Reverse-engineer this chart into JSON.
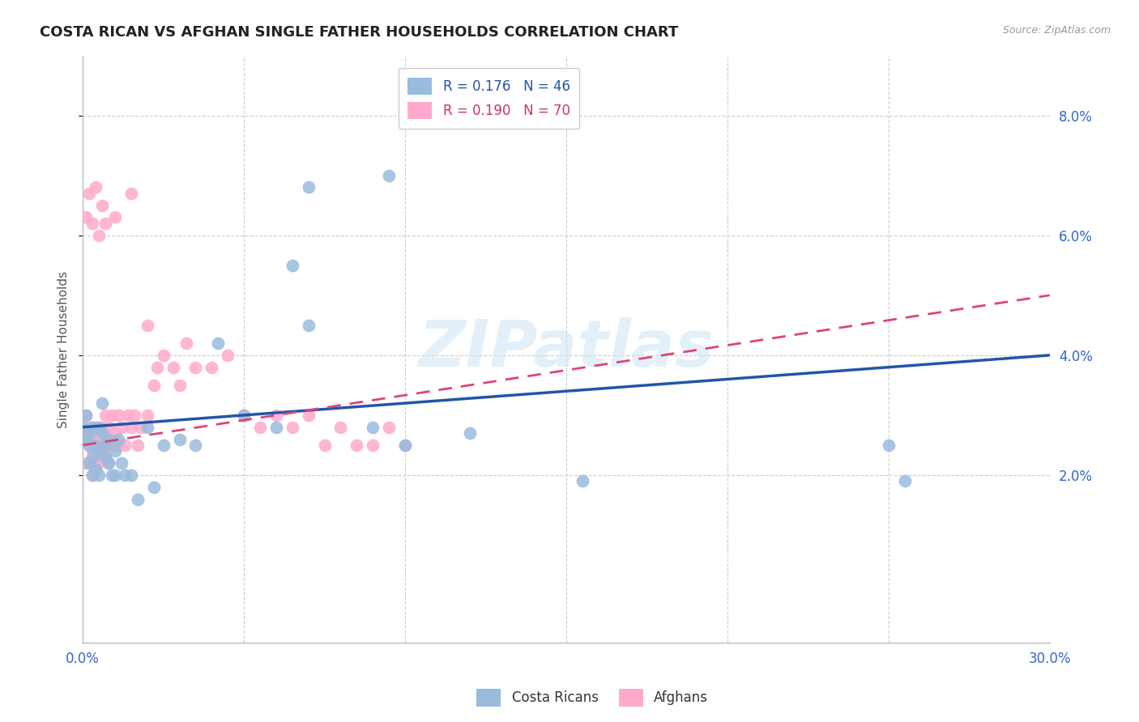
{
  "title": "COSTA RICAN VS AFGHAN SINGLE FATHER HOUSEHOLDS CORRELATION CHART",
  "source": "Source: ZipAtlas.com",
  "ylabel": "Single Father Households",
  "ytick_values": [
    0.02,
    0.04,
    0.06,
    0.08
  ],
  "xlim": [
    0.0,
    0.3
  ],
  "ylim": [
    -0.008,
    0.09
  ],
  "watermark": "ZIPatlas",
  "blue_color": "#99bbdd",
  "pink_color": "#ffaacc",
  "line_blue": "#2255aa",
  "line_pink": "#dd4477",
  "blue_line_start_y": 0.028,
  "blue_line_end_y": 0.04,
  "pink_line_start_y": 0.025,
  "pink_line_end_y": 0.05,
  "costa_ricans_x": [
    0.0,
    0.001,
    0.001,
    0.002,
    0.002,
    0.002,
    0.003,
    0.003,
    0.003,
    0.004,
    0.004,
    0.005,
    0.005,
    0.005,
    0.006,
    0.006,
    0.007,
    0.007,
    0.008,
    0.008,
    0.009,
    0.01,
    0.01,
    0.011,
    0.012,
    0.013,
    0.015,
    0.017,
    0.02,
    0.022,
    0.025,
    0.03,
    0.035,
    0.042,
    0.05,
    0.06,
    0.065,
    0.07,
    0.09,
    0.1,
    0.155,
    0.25,
    0.255,
    0.07,
    0.095,
    0.12
  ],
  "costa_ricans_y": [
    0.028,
    0.026,
    0.03,
    0.025,
    0.027,
    0.022,
    0.028,
    0.023,
    0.02,
    0.025,
    0.021,
    0.024,
    0.02,
    0.028,
    0.027,
    0.032,
    0.025,
    0.023,
    0.022,
    0.026,
    0.02,
    0.024,
    0.02,
    0.026,
    0.022,
    0.02,
    0.02,
    0.016,
    0.028,
    0.018,
    0.025,
    0.026,
    0.025,
    0.042,
    0.03,
    0.028,
    0.055,
    0.045,
    0.028,
    0.025,
    0.019,
    0.025,
    0.019,
    0.068,
    0.07,
    0.027
  ],
  "afghans_x": [
    0.0,
    0.001,
    0.001,
    0.001,
    0.002,
    0.002,
    0.002,
    0.003,
    0.003,
    0.003,
    0.003,
    0.004,
    0.004,
    0.004,
    0.005,
    0.005,
    0.005,
    0.006,
    0.006,
    0.006,
    0.007,
    0.007,
    0.007,
    0.008,
    0.008,
    0.008,
    0.009,
    0.009,
    0.01,
    0.01,
    0.011,
    0.011,
    0.012,
    0.013,
    0.014,
    0.015,
    0.016,
    0.017,
    0.018,
    0.02,
    0.022,
    0.023,
    0.025,
    0.028,
    0.03,
    0.032,
    0.035,
    0.04,
    0.045,
    0.05,
    0.055,
    0.06,
    0.065,
    0.07,
    0.075,
    0.08,
    0.085,
    0.09,
    0.095,
    0.1,
    0.01,
    0.015,
    0.02,
    0.001,
    0.002,
    0.003,
    0.004,
    0.005,
    0.006,
    0.007
  ],
  "afghans_y": [
    0.028,
    0.026,
    0.03,
    0.022,
    0.025,
    0.028,
    0.022,
    0.027,
    0.024,
    0.02,
    0.028,
    0.025,
    0.022,
    0.028,
    0.024,
    0.026,
    0.022,
    0.025,
    0.028,
    0.024,
    0.027,
    0.03,
    0.023,
    0.026,
    0.028,
    0.022,
    0.025,
    0.03,
    0.027,
    0.025,
    0.03,
    0.025,
    0.028,
    0.025,
    0.03,
    0.028,
    0.03,
    0.025,
    0.028,
    0.03,
    0.035,
    0.038,
    0.04,
    0.038,
    0.035,
    0.042,
    0.038,
    0.038,
    0.04,
    0.03,
    0.028,
    0.03,
    0.028,
    0.03,
    0.025,
    0.028,
    0.025,
    0.025,
    0.028,
    0.025,
    0.063,
    0.067,
    0.045,
    0.063,
    0.067,
    0.062,
    0.068,
    0.06,
    0.065,
    0.062
  ]
}
